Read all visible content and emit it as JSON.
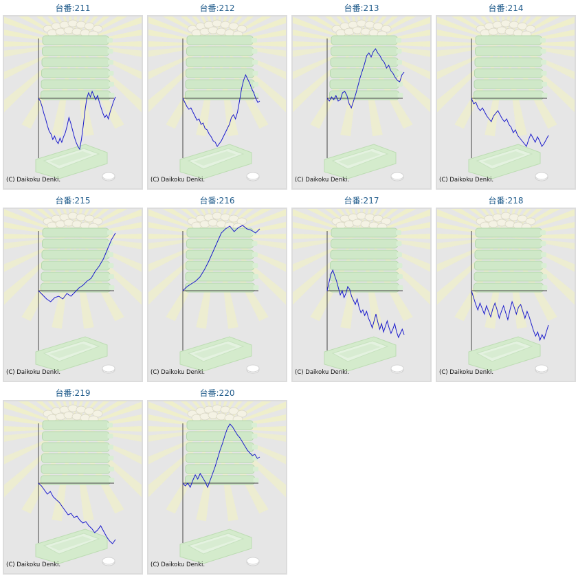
{
  "title_prefix": "台番:",
  "copyright": "(C) Daikoku Denki.",
  "colors": {
    "line": "#1a1acc",
    "axis": "#444444",
    "title": "#1e5a8a",
    "bg": "#e6e6e6"
  },
  "chart_data": [
    {
      "type": "line",
      "title": "台番:211",
      "machine_no": "211",
      "values": [
        0,
        -4,
        -12,
        -22,
        -30,
        -40,
        -48,
        -52,
        -60,
        -55,
        -62,
        -66,
        -58,
        -64,
        -56,
        -50,
        -40,
        -28,
        -36,
        -46,
        -56,
        -64,
        -70,
        -74,
        -60,
        -40,
        -18,
        0,
        8,
        2,
        10,
        4,
        -2,
        4,
        -6,
        -14,
        -22,
        -28,
        -24,
        -30,
        -20,
        -12,
        -4,
        2
      ]
    },
    {
      "type": "line",
      "title": "台番:212",
      "machine_no": "212",
      "values": [
        0,
        -6,
        -12,
        -16,
        -14,
        -20,
        -26,
        -32,
        -30,
        -38,
        -36,
        -44,
        -46,
        -52,
        -56,
        -62,
        -64,
        -70,
        -66,
        -62,
        -56,
        -50,
        -44,
        -38,
        -28,
        -24,
        -30,
        -20,
        -4,
        14,
        26,
        34,
        28,
        22,
        14,
        8,
        0,
        -6,
        -4
      ]
    },
    {
      "type": "line",
      "title": "台番:213",
      "machine_no": "213",
      "values": [
        0,
        -4,
        2,
        -2,
        4,
        -4,
        -2,
        8,
        10,
        4,
        -8,
        -14,
        -4,
        6,
        18,
        30,
        40,
        50,
        62,
        66,
        60,
        68,
        72,
        66,
        62,
        56,
        52,
        44,
        48,
        40,
        36,
        30,
        26,
        24,
        34,
        38
      ]
    },
    {
      "type": "line",
      "title": "台番:214",
      "machine_no": "214",
      "values": [
        0,
        -8,
        -6,
        -14,
        -18,
        -14,
        -20,
        -26,
        -30,
        -34,
        -26,
        -22,
        -18,
        -24,
        -30,
        -34,
        -30,
        -38,
        -42,
        -50,
        -46,
        -54,
        -58,
        -62,
        -66,
        -70,
        -60,
        -52,
        -58,
        -64,
        -56,
        -62,
        -70,
        -66,
        -60,
        -54
      ]
    },
    {
      "type": "line",
      "title": "台番:215",
      "machine_no": "215",
      "values": [
        0,
        -6,
        -12,
        -16,
        -10,
        -8,
        -12,
        -4,
        -8,
        -2,
        4,
        8,
        14,
        18,
        28,
        36,
        46,
        60,
        74,
        84
      ]
    },
    {
      "type": "line",
      "title": "台番:216",
      "machine_no": "216",
      "values": [
        0,
        6,
        10,
        14,
        20,
        30,
        42,
        56,
        70,
        84,
        90,
        94,
        86,
        92,
        96,
        90,
        88,
        84,
        90
      ]
    },
    {
      "type": "line",
      "title": "台番:217",
      "machine_no": "217",
      "values": [
        0,
        12,
        24,
        30,
        22,
        14,
        4,
        -6,
        0,
        -10,
        -4,
        6,
        2,
        -8,
        -14,
        -20,
        -12,
        -24,
        -32,
        -28,
        -36,
        -30,
        -40,
        -46,
        -54,
        -44,
        -34,
        -46,
        -56,
        -48,
        -60,
        -52,
        -44,
        -54,
        -62,
        -56,
        -48,
        -60,
        -68,
        -62,
        -56,
        -64
      ]
    },
    {
      "type": "line",
      "title": "台番:218",
      "machine_no": "218",
      "values": [
        0,
        -10,
        -20,
        -28,
        -18,
        -26,
        -34,
        -22,
        -30,
        -38,
        -26,
        -18,
        -28,
        -40,
        -30,
        -22,
        -32,
        -42,
        -28,
        -16,
        -24,
        -34,
        -24,
        -20,
        -30,
        -40,
        -30,
        -38,
        -48,
        -58,
        -66,
        -60,
        -72,
        -64,
        -70,
        -60,
        -50
      ]
    },
    {
      "type": "line",
      "title": "台番:219",
      "machine_no": "219",
      "values": [
        0,
        -4,
        -10,
        -16,
        -12,
        -20,
        -24,
        -28,
        -34,
        -40,
        -46,
        -44,
        -50,
        -48,
        -54,
        -58,
        -56,
        -62,
        -66,
        -72,
        -68,
        -62,
        -70,
        -78,
        -84,
        -88,
        -82
      ]
    },
    {
      "type": "line",
      "title": "台番:220",
      "machine_no": "220",
      "values": [
        0,
        -4,
        0,
        -6,
        4,
        12,
        6,
        14,
        8,
        2,
        -6,
        4,
        14,
        24,
        36,
        48,
        58,
        70,
        80,
        86,
        82,
        76,
        70,
        66,
        60,
        54,
        48,
        44,
        40,
        42,
        36,
        38
      ]
    }
  ]
}
